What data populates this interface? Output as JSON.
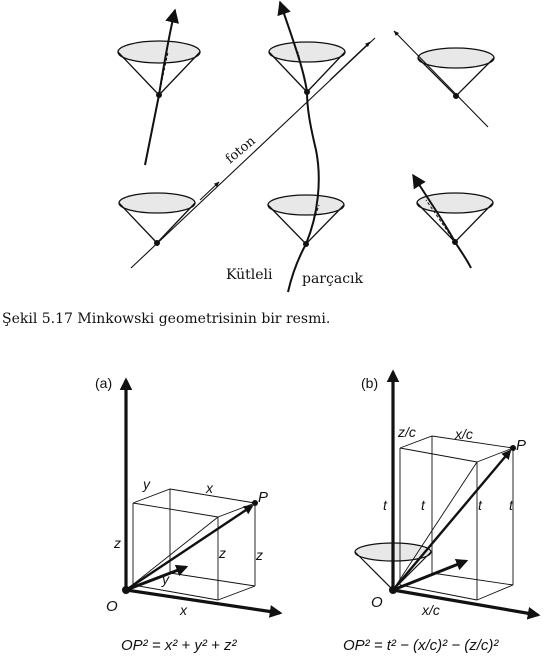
{
  "top_figure": {
    "label_foton": "foton",
    "label_kutleli": "Kütleli",
    "label_parcacik": "parçacık",
    "caption": "Şekil 5.17 Minkowski geometrisinin bir resmi."
  },
  "figure_a": {
    "panel_label": "(a)",
    "origin": "O",
    "point": "P",
    "box_top_y": "y",
    "box_top_x": "x",
    "axis_x": "x",
    "axis_y": "y",
    "side_z_left": "z",
    "side_z_mid": "z",
    "side_z_right": "z",
    "formula": "OP² = x² + y² + z²"
  },
  "figure_b": {
    "panel_label": "(b)",
    "origin": "O",
    "point": "P",
    "box_top_zc": "z/c",
    "box_top_xc": "x/c",
    "axis_xc": "x/c",
    "side_t_1": "t",
    "side_t_2": "t",
    "side_t_3": "t",
    "side_t_4": "t",
    "formula": "OP² = t² − (x/c)² − (z/c)²"
  }
}
